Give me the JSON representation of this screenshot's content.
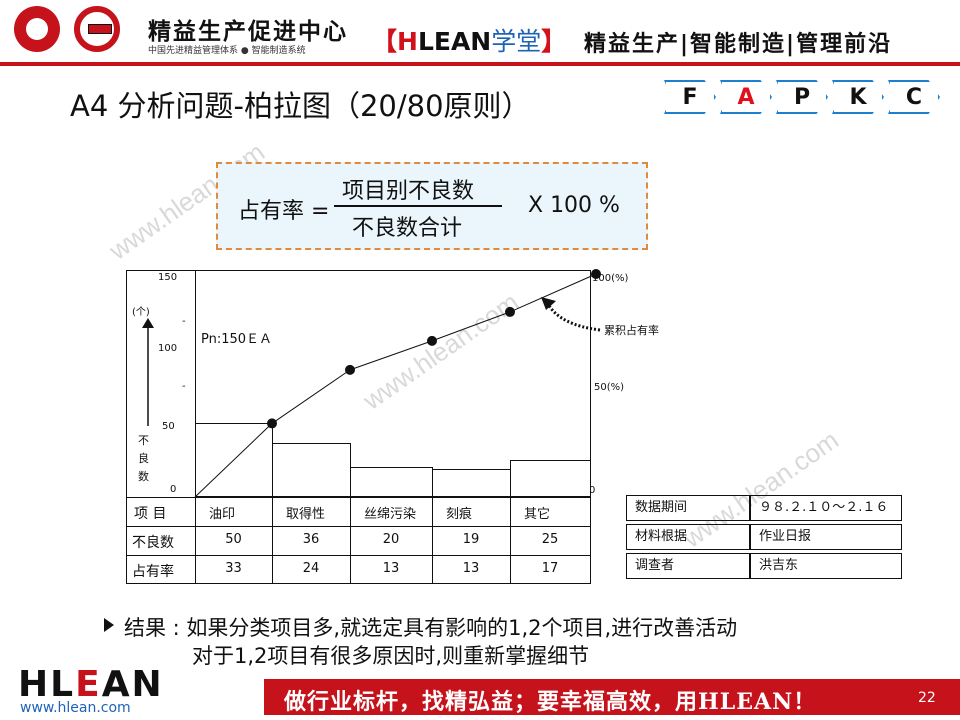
{
  "header": {
    "brand_cn": "精益生产促进中心",
    "brand_sub": "中国先进精益管理体系 ● 智能制造系统",
    "center_prefix": "【",
    "center_h": "H",
    "center_lean": "LEAN",
    "center_cn": "学堂",
    "center_suffix": "】",
    "right_text": "精益生产|智能制造|管理前沿"
  },
  "title": "A4   分析问题-柏拉图（20/80原则）",
  "steps": [
    {
      "label": "F",
      "active": false
    },
    {
      "label": "A",
      "active": true
    },
    {
      "label": "P",
      "active": false
    },
    {
      "label": "K",
      "active": false
    },
    {
      "label": "C",
      "active": false
    }
  ],
  "formula": {
    "lhs": "占有率 =",
    "numerator": "项目别不良数",
    "denominator": "不良数合计",
    "multiplier": "X 100 %"
  },
  "chart": {
    "y_left_ticks": [
      "150",
      "100",
      "50",
      "0"
    ],
    "y_left_unit": "(个)",
    "y_left_label": "不良数",
    "y_right_top": "100(%)",
    "y_right_mid": "50(%)",
    "y_right_zero": "0",
    "pn_label": "Pn:150ＥＡ",
    "cumulative_label": "累积占有率"
  },
  "chart_data": {
    "type": "bar",
    "categories": [
      "油印",
      "取得性",
      "丝绵污染",
      "刻痕",
      "其它"
    ],
    "series": [
      {
        "name": "不良数",
        "values": [
          50,
          36,
          20,
          19,
          25
        ]
      },
      {
        "name": "累积占有率",
        "values": [
          33,
          57,
          70,
          83,
          100
        ]
      }
    ],
    "ylim": [
      0,
      150
    ],
    "y2lim": [
      0,
      100
    ],
    "ylabel": "不良数"
  },
  "table": {
    "row_labels": [
      "项  目",
      "不良数",
      "占有率"
    ],
    "items": [
      "油印",
      "取得性",
      "丝绵污染",
      "刻痕",
      "其它"
    ],
    "counts": [
      "50",
      "36",
      "20",
      "19",
      "25"
    ],
    "shares": [
      "33",
      "24",
      "13",
      "13",
      "17"
    ]
  },
  "info": [
    {
      "key": "数据期间",
      "value": "９８.２.１０～２.１６"
    },
    {
      "key": "材料根据",
      "value": "作业日报"
    },
    {
      "key": "调查者",
      "value": "洪吉东"
    }
  ],
  "result": {
    "line1": "结果 : 如果分类项目多,就选定具有影响的1,2个项目,进行改善活动",
    "line2": "对于1,2项目有很多原因时,则重新掌握细节"
  },
  "footer": {
    "logo_h": "H",
    "logo_l": "L",
    "logo_e": "E",
    "logo_an": "AN",
    "url": "www.hlean.com",
    "slogan": "做行业标杆，找精弘益；要幸福高效，用HLEAN！",
    "page": "22"
  },
  "watermark": "www.hlean.com",
  "colors": {
    "brand_red": "#c5121b",
    "accent_blue": "#1d7fcf",
    "formula_bg": "#eaf6fb"
  }
}
